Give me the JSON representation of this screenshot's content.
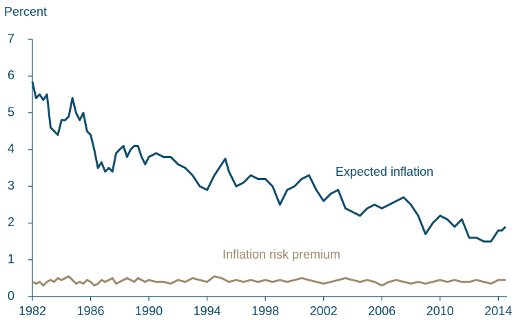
{
  "chart_data": {
    "type": "line",
    "ylabel": "Percent",
    "x": [
      1982.0,
      1982.25,
      1982.5,
      1982.75,
      1983.0,
      1983.25,
      1983.5,
      1983.75,
      1984.0,
      1984.25,
      1984.5,
      1984.75,
      1985.0,
      1985.25,
      1985.5,
      1985.75,
      1986.0,
      1986.25,
      1986.5,
      1986.75,
      1987.0,
      1987.25,
      1987.5,
      1987.75,
      1988.0,
      1988.25,
      1988.5,
      1988.75,
      1989.0,
      1989.25,
      1989.5,
      1989.75,
      1990.0,
      1990.5,
      1991.0,
      1991.5,
      1992.0,
      1992.5,
      1993.0,
      1993.5,
      1994.0,
      1994.5,
      1995.0,
      1995.25,
      1995.5,
      1996.0,
      1996.5,
      1997.0,
      1997.5,
      1998.0,
      1998.5,
      1999.0,
      1999.5,
      2000.0,
      2000.5,
      2001.0,
      2001.5,
      2002.0,
      2002.5,
      2003.0,
      2003.5,
      2004.0,
      2004.5,
      2005.0,
      2005.5,
      2006.0,
      2006.5,
      2007.0,
      2007.5,
      2008.0,
      2008.5,
      2009.0,
      2009.5,
      2010.0,
      2010.5,
      2011.0,
      2011.5,
      2012.0,
      2012.5,
      2013.0,
      2013.5,
      2014.0,
      2014.25,
      2014.5
    ],
    "series": [
      {
        "name": "Expected inflation",
        "color": "#0f4d6e",
        "values": [
          5.85,
          5.4,
          5.5,
          5.35,
          5.5,
          4.6,
          4.5,
          4.4,
          4.8,
          4.8,
          4.9,
          5.4,
          5.0,
          4.8,
          5.0,
          4.5,
          4.4,
          4.0,
          3.5,
          3.65,
          3.4,
          3.5,
          3.4,
          3.9,
          4.0,
          4.1,
          3.8,
          4.0,
          4.1,
          4.1,
          3.8,
          3.6,
          3.8,
          3.9,
          3.8,
          3.8,
          3.6,
          3.5,
          3.3,
          3.0,
          2.9,
          3.3,
          3.6,
          3.75,
          3.4,
          3.0,
          3.1,
          3.3,
          3.2,
          3.2,
          3.0,
          2.5,
          2.9,
          3.0,
          3.2,
          3.3,
          2.9,
          2.6,
          2.8,
          2.9,
          2.4,
          2.3,
          2.2,
          2.4,
          2.5,
          2.4,
          2.5,
          2.6,
          2.7,
          2.5,
          2.2,
          1.7,
          2.0,
          2.2,
          2.1,
          1.9,
          2.1,
          1.6,
          1.6,
          1.5,
          1.5,
          1.8,
          1.8,
          1.9
        ]
      },
      {
        "name": "Inflation risk premium",
        "color": "#a08a6c",
        "values": [
          0.4,
          0.35,
          0.4,
          0.3,
          0.4,
          0.45,
          0.4,
          0.5,
          0.45,
          0.5,
          0.55,
          0.45,
          0.35,
          0.4,
          0.35,
          0.45,
          0.4,
          0.3,
          0.35,
          0.45,
          0.4,
          0.45,
          0.5,
          0.35,
          0.4,
          0.45,
          0.5,
          0.45,
          0.4,
          0.5,
          0.45,
          0.4,
          0.45,
          0.4,
          0.4,
          0.35,
          0.45,
          0.4,
          0.5,
          0.45,
          0.4,
          0.55,
          0.5,
          0.45,
          0.4,
          0.45,
          0.4,
          0.45,
          0.4,
          0.45,
          0.4,
          0.45,
          0.4,
          0.45,
          0.5,
          0.45,
          0.4,
          0.35,
          0.4,
          0.45,
          0.5,
          0.45,
          0.4,
          0.45,
          0.4,
          0.3,
          0.4,
          0.45,
          0.4,
          0.35,
          0.4,
          0.35,
          0.4,
          0.45,
          0.4,
          0.45,
          0.4,
          0.4,
          0.45,
          0.4,
          0.35,
          0.45,
          0.45,
          0.45
        ]
      }
    ],
    "xlim": [
      1982,
      2014.6
    ],
    "xticks": [
      1982,
      1986,
      1990,
      1994,
      1998,
      2002,
      2006,
      2010,
      2014
    ],
    "ylim": [
      0,
      7
    ],
    "yticks": [
      0,
      1,
      2,
      3,
      4,
      5,
      6,
      7
    ],
    "grid": false
  }
}
